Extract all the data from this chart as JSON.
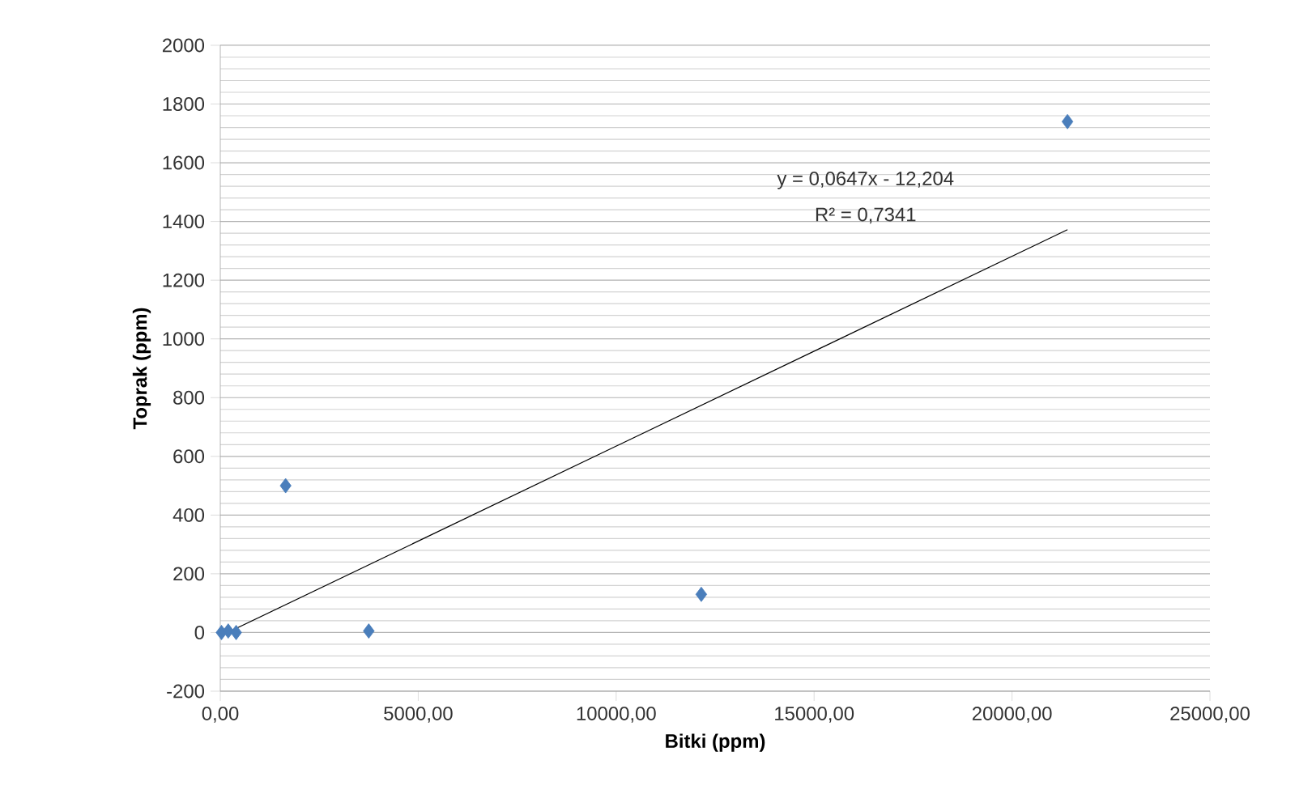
{
  "chart_data": {
    "type": "scatter",
    "xlabel": "Bitki (ppm)",
    "ylabel": "Toprak (ppm)",
    "series": [
      {
        "color": "#4a7ebb",
        "x": [
          30,
          200,
          400,
          1650,
          3750,
          12150,
          21400
        ],
        "values": [
          0,
          5,
          0,
          500,
          5,
          130,
          1740
        ]
      },
      {
        "type": "line",
        "marker": "none",
        "color": "#000000",
        "x": [
          0,
          21400
        ],
        "values": [
          -12,
          1372
        ]
      }
    ],
    "xlim": [
      0,
      25000
    ],
    "xticks": [
      {
        "value": 0,
        "label": "0,00"
      },
      {
        "value": 5000,
        "label": "5000,00"
      },
      {
        "value": 10000,
        "label": "10000,00"
      },
      {
        "value": 15000,
        "label": "15000,00"
      },
      {
        "value": 20000,
        "label": "20000,00"
      },
      {
        "value": 25000,
        "label": "25000,00"
      }
    ],
    "ylim": [
      -200,
      2000
    ],
    "yticks": [
      -200,
      0,
      200,
      400,
      600,
      800,
      1000,
      1200,
      1400,
      1600,
      1800,
      2000
    ],
    "grid": "y",
    "marker": "diamond",
    "annotations": [
      "y = 0,0647x - 12,204",
      "R² = 0,7341"
    ]
  }
}
